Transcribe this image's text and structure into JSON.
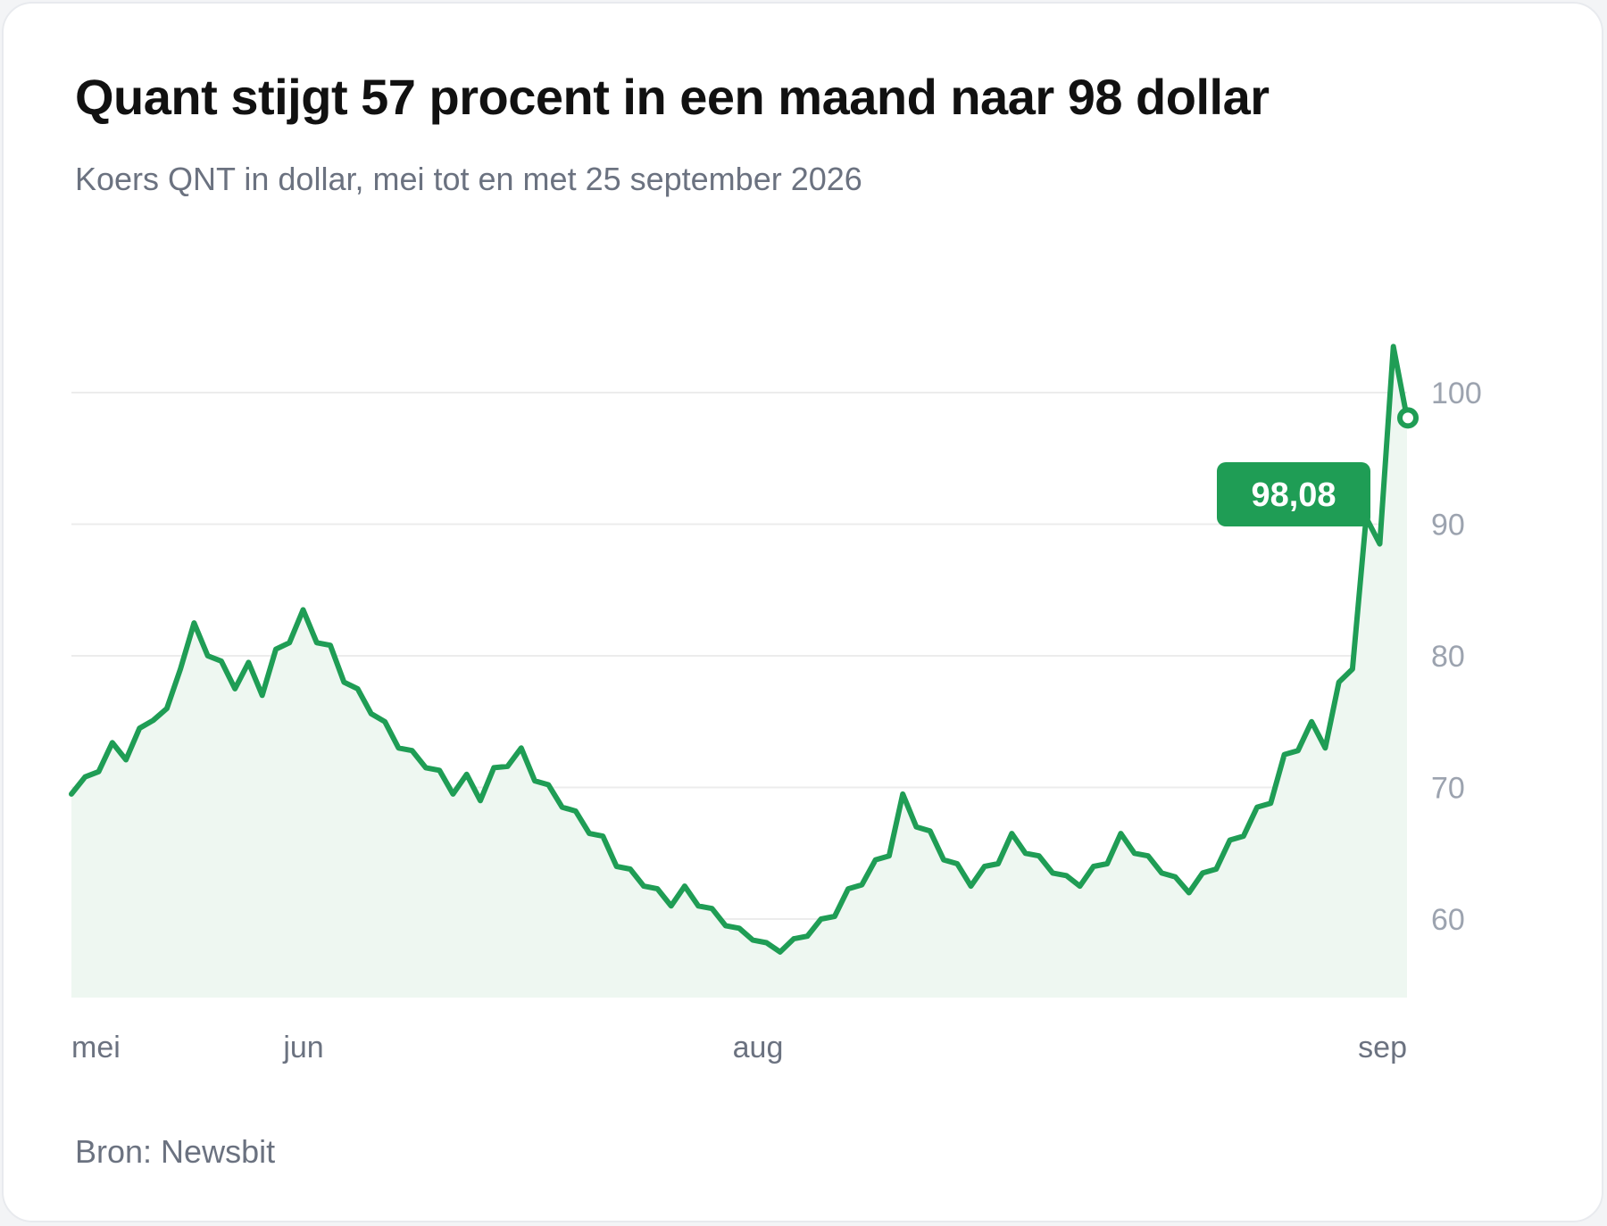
{
  "chart_data": {
    "type": "area",
    "title": "Quant stijgt 57 procent in een maand naar 98 dollar",
    "subtitle": "Koers QNT in dollar, mei tot en met 25 september 2026",
    "source": "Bron: Newsbit",
    "xlabel": "",
    "ylabel": "",
    "x_ticks": [
      "mei",
      "jun",
      "aug",
      "sep"
    ],
    "y_ticks": [
      60,
      70,
      80,
      90,
      100
    ],
    "ylim": [
      54,
      104
    ],
    "grid": "horizontal",
    "colors": {
      "line": "#1f9d55",
      "fill": "#eef7f1",
      "badge": "#1f9d55"
    },
    "annotation": {
      "label": "98,08",
      "value": 98.08
    },
    "series": [
      {
        "values": [
          69.5,
          70.8,
          71.2,
          73.4,
          72.1,
          74.5,
          75.1,
          76.0,
          79.0,
          82.5,
          80.0,
          79.6,
          77.5,
          79.5,
          77.0,
          80.5,
          81.0,
          83.5,
          81.0,
          80.8,
          78.0,
          77.5,
          75.6,
          75.0,
          73.0,
          72.8,
          71.5,
          71.3,
          69.5,
          71.0,
          69.0,
          71.5,
          71.6,
          73.0,
          70.5,
          70.2,
          68.5,
          68.2,
          66.5,
          66.3,
          64.0,
          63.8,
          62.5,
          62.3,
          61.0,
          62.5,
          61.0,
          60.8,
          59.5,
          59.3,
          58.4,
          58.2,
          57.5,
          58.5,
          58.7,
          60.0,
          60.2,
          62.3,
          62.6,
          64.5,
          64.8,
          69.5,
          67.0,
          66.7,
          64.5,
          64.2,
          62.5,
          64.0,
          64.2,
          66.5,
          65.0,
          64.8,
          63.5,
          63.3,
          62.5,
          64.0,
          64.2,
          66.5,
          65.0,
          64.8,
          63.5,
          63.2,
          62.0,
          63.5,
          63.8,
          66.0,
          66.3,
          68.5,
          68.8,
          72.5,
          72.8,
          75.0,
          73.0,
          78.0,
          79.0,
          90.5,
          88.5,
          103.5,
          98.08
        ]
      }
    ]
  }
}
